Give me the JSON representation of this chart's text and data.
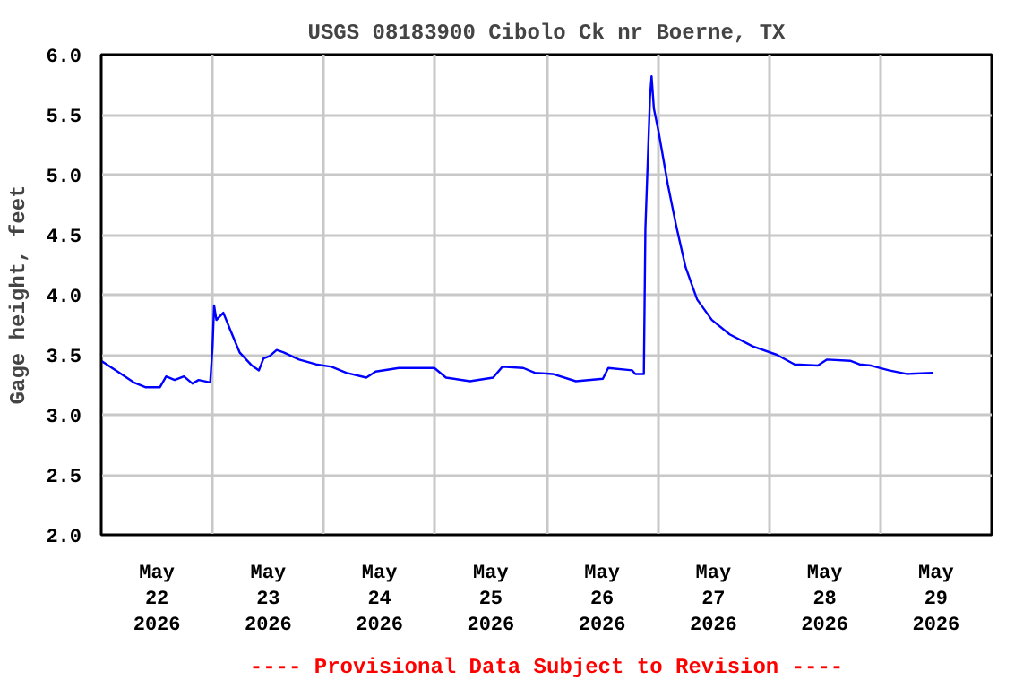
{
  "chart_data": {
    "type": "line",
    "title": "USGS 08183900 Cibolo Ck nr Boerne, TX",
    "ylabel": "Gage height, feet",
    "annotations": [
      "---- Provisional Data Subject to Revision ----"
    ],
    "xlim": [
      "2026-05-22T00:00",
      "2026-05-30T00:00"
    ],
    "xticks": [
      {
        "value": "2026-05-22T12:00",
        "label": "May\n22\n2026"
      },
      {
        "value": "2026-05-23T00:00",
        "label": null
      },
      {
        "value": "2026-05-23T12:00",
        "label": "May\n23\n2026"
      },
      {
        "value": "2026-05-24T00:00",
        "label": null
      },
      {
        "value": "2026-05-24T12:00",
        "label": "May\n24\n2026"
      },
      {
        "value": "2026-05-25T00:00",
        "label": null
      },
      {
        "value": "2026-05-25T12:00",
        "label": "May\n25\n2026"
      },
      {
        "value": "2026-05-26T00:00",
        "label": null
      },
      {
        "value": "2026-05-26T12:00",
        "label": "May\n26\n2026"
      },
      {
        "value": "2026-05-27T00:00",
        "label": null
      },
      {
        "value": "2026-05-27T12:00",
        "label": "May\n27\n2026"
      },
      {
        "value": "2026-05-28T00:00",
        "label": null
      },
      {
        "value": "2026-05-28T12:00",
        "label": "May\n28\n2026"
      },
      {
        "value": "2026-05-29T00:00",
        "label": null
      },
      {
        "value": "2026-05-29T12:00",
        "label": "May\n29\n2026"
      }
    ],
    "ylim": [
      2.0,
      6.0
    ],
    "yticks": [
      {
        "value": 2.0,
        "label": "2.0"
      },
      2.5,
      {
        "value": 3.0,
        "label": "3.0"
      },
      3.5,
      {
        "value": 4.0,
        "label": "4.0"
      },
      4.5,
      {
        "value": 5.0,
        "label": "5.0"
      },
      5.5,
      {
        "value": 6.0,
        "label": "6.0"
      }
    ],
    "grid": true,
    "marker": "none",
    "line_style": "solid",
    "series": [
      {
        "color": "#0000ff",
        "x": [
          "2026-05-22T00:00",
          "2026-05-22T03:10",
          "2026-05-22T07:00",
          "2026-05-22T09:30",
          "2026-05-22T12:40",
          "2026-05-22T14:00",
          "2026-05-22T15:50",
          "2026-05-22T17:50",
          "2026-05-22T19:40",
          "2026-05-22T21:00",
          "2026-05-22T23:30",
          "2026-05-23T00:00",
          "2026-05-23T00:20",
          "2026-05-23T00:50",
          "2026-05-23T02:20",
          "2026-05-23T04:00",
          "2026-05-23T05:50",
          "2026-05-23T08:30",
          "2026-05-23T10:00",
          "2026-05-23T11:00",
          "2026-05-23T12:20",
          "2026-05-23T13:50",
          "2026-05-23T15:20",
          "2026-05-23T18:40",
          "2026-05-23T22:20",
          "2026-05-24T01:40",
          "2026-05-24T04:50",
          "2026-05-24T09:10",
          "2026-05-24T11:10",
          "2026-05-24T16:10",
          "2026-05-24T20:00",
          "2026-05-24T23:50",
          "2026-05-25T02:20",
          "2026-05-25T07:30",
          "2026-05-25T12:30",
          "2026-05-25T14:30",
          "2026-05-25T19:00",
          "2026-05-25T21:30",
          "2026-05-26T01:20",
          "2026-05-26T06:20",
          "2026-05-26T12:10",
          "2026-05-26T13:20",
          "2026-05-26T18:30",
          "2026-05-26T19:10",
          "2026-05-26T21:00",
          "2026-05-26T21:20",
          "2026-05-26T22:20",
          "2026-05-26T22:40",
          "2026-05-26T23:10",
          "2026-05-27T00:10",
          "2026-05-27T02:10",
          "2026-05-27T04:00",
          "2026-05-27T06:00",
          "2026-05-27T08:30",
          "2026-05-27T11:40",
          "2026-05-27T15:30",
          "2026-05-27T20:30",
          "2026-05-28T01:40",
          "2026-05-28T05:30",
          "2026-05-28T10:30",
          "2026-05-28T12:30",
          "2026-05-28T17:30",
          "2026-05-28T19:30",
          "2026-05-28T22:00",
          "2026-05-29T01:50",
          "2026-05-29T05:40",
          "2026-05-29T11:20"
        ],
        "values": [
          3.45,
          3.37,
          3.27,
          3.23,
          3.23,
          3.32,
          3.29,
          3.32,
          3.26,
          3.29,
          3.27,
          3.57,
          3.91,
          3.79,
          3.85,
          3.69,
          3.52,
          3.41,
          3.37,
          3.47,
          3.49,
          3.54,
          3.52,
          3.46,
          3.42,
          3.4,
          3.35,
          3.31,
          3.36,
          3.39,
          3.39,
          3.39,
          3.31,
          3.28,
          3.31,
          3.4,
          3.39,
          3.35,
          3.34,
          3.28,
          3.3,
          3.39,
          3.37,
          3.34,
          3.34,
          4.55,
          5.65,
          5.82,
          5.55,
          5.36,
          4.92,
          4.57,
          4.23,
          3.96,
          3.79,
          3.67,
          3.57,
          3.5,
          3.42,
          3.41,
          3.46,
          3.45,
          3.42,
          3.41,
          3.37,
          3.34,
          3.35
        ]
      }
    ]
  }
}
